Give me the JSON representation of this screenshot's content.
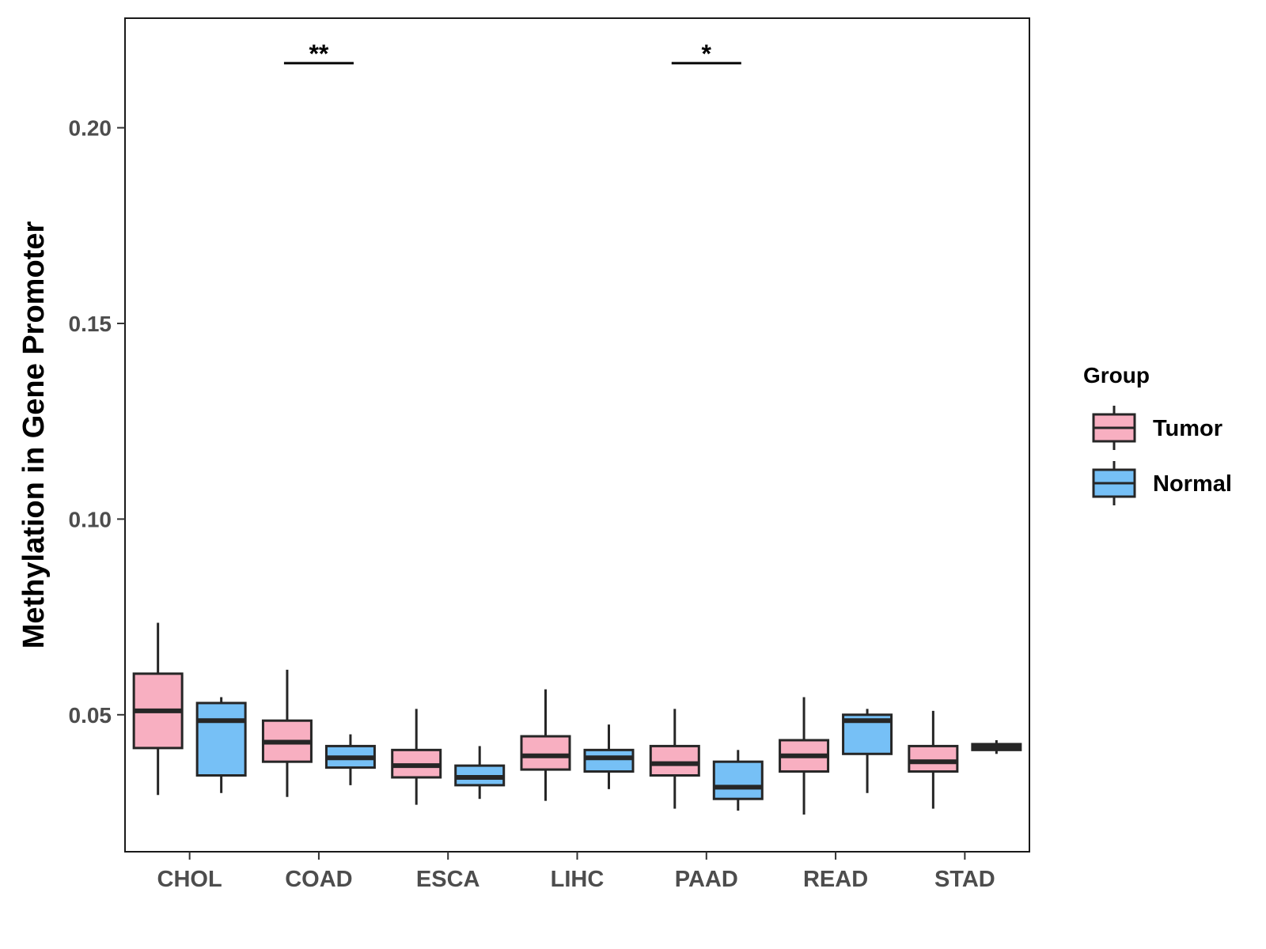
{
  "chart_data": {
    "type": "boxplot",
    "title": "",
    "xlabel": "",
    "ylabel": "Methylation in Gene Promoter",
    "ylim": [
      0.015,
      0.228
    ],
    "yticks": [
      0.05,
      0.1,
      0.15,
      0.2
    ],
    "ytick_labels": [
      "0.05",
      "0.10",
      "0.15",
      "0.20"
    ],
    "grid": false,
    "categories": [
      "CHOL",
      "COAD",
      "ESCA",
      "LIHC",
      "PAAD",
      "READ",
      "STAD"
    ],
    "legend": {
      "title": "Group",
      "position": "right",
      "entries": [
        {
          "name": "Tumor",
          "color": "#F8AFC1"
        },
        {
          "name": "Normal",
          "color": "#76C0F6"
        }
      ]
    },
    "series": [
      {
        "name": "Tumor",
        "color": "#F8AFC1",
        "boxes": [
          {
            "category": "CHOL",
            "min": 0.0295,
            "q1": 0.0415,
            "median": 0.051,
            "q3": 0.0605,
            "max": 0.0735
          },
          {
            "category": "COAD",
            "min": 0.029,
            "q1": 0.038,
            "median": 0.043,
            "q3": 0.0485,
            "max": 0.0615
          },
          {
            "category": "ESCA",
            "min": 0.027,
            "q1": 0.034,
            "median": 0.037,
            "q3": 0.041,
            "max": 0.0515
          },
          {
            "category": "LIHC",
            "min": 0.028,
            "q1": 0.036,
            "median": 0.0395,
            "q3": 0.0445,
            "max": 0.0565
          },
          {
            "category": "PAAD",
            "min": 0.026,
            "q1": 0.0345,
            "median": 0.0375,
            "q3": 0.042,
            "max": 0.0515
          },
          {
            "category": "READ",
            "min": 0.0245,
            "q1": 0.0355,
            "median": 0.0395,
            "q3": 0.0435,
            "max": 0.0545
          },
          {
            "category": "STAD",
            "min": 0.026,
            "q1": 0.0355,
            "median": 0.038,
            "q3": 0.042,
            "max": 0.051
          }
        ]
      },
      {
        "name": "Normal",
        "color": "#76C0F6",
        "boxes": [
          {
            "category": "CHOL",
            "min": 0.03,
            "q1": 0.0345,
            "median": 0.0485,
            "q3": 0.053,
            "max": 0.0545
          },
          {
            "category": "COAD",
            "min": 0.032,
            "q1": 0.0365,
            "median": 0.039,
            "q3": 0.042,
            "max": 0.045
          },
          {
            "category": "ESCA",
            "min": 0.0285,
            "q1": 0.032,
            "median": 0.034,
            "q3": 0.037,
            "max": 0.042
          },
          {
            "category": "LIHC",
            "min": 0.031,
            "q1": 0.0355,
            "median": 0.039,
            "q3": 0.041,
            "max": 0.0475
          },
          {
            "category": "PAAD",
            "min": 0.0255,
            "q1": 0.0285,
            "median": 0.0315,
            "q3": 0.038,
            "max": 0.041
          },
          {
            "category": "READ",
            "min": 0.03,
            "q1": 0.04,
            "median": 0.0485,
            "q3": 0.05,
            "max": 0.0515
          },
          {
            "category": "STAD",
            "min": 0.04,
            "q1": 0.041,
            "median": 0.0418,
            "q3": 0.0425,
            "max": 0.0435
          }
        ]
      }
    ],
    "annotations": [
      {
        "category": "COAD",
        "label": "**",
        "y": 0.2165
      },
      {
        "category": "PAAD",
        "label": "*",
        "y": 0.2165
      }
    ]
  }
}
